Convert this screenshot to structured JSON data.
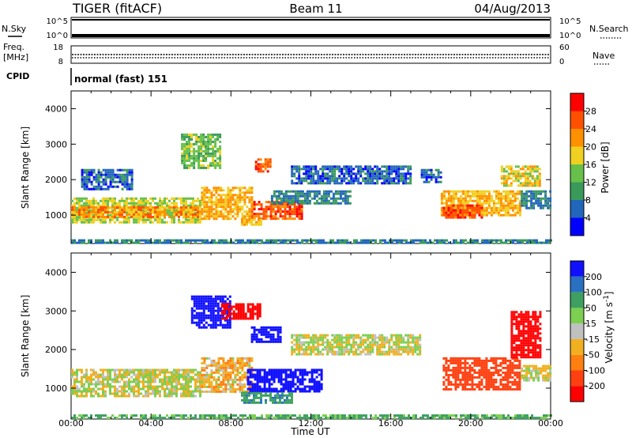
{
  "header": {
    "title": "TIGER (fitACF)",
    "beam": "Beam 11",
    "date": "04/Aug/2013"
  },
  "control_panels": {
    "nsky_label": "N.Sky",
    "nsky_ticks": [
      "10^5",
      "10^0"
    ],
    "nsearch_label": "N.Search",
    "nsearch_ticks": [
      "10^5",
      "10^0"
    ],
    "freq_label": "Freq.",
    "freq_unit": "[MHz]",
    "freq_ticks": [
      "18",
      "8"
    ],
    "nave_label": "Nave",
    "nave_ticks": [
      "60",
      "0"
    ],
    "cpid_label": "CPID",
    "cpid_value": "normal (fast) 151"
  },
  "x_axis": {
    "label": "Time UT",
    "ticks": [
      "00:00",
      "04:00",
      "08:00",
      "12:00",
      "16:00",
      "20:00",
      "00:00"
    ],
    "range_hours": [
      0,
      24
    ]
  },
  "colors": {
    "power_scale": [
      "#0000ff",
      "#2266bb",
      "#3a9a5a",
      "#66c04a",
      "#f0d020",
      "#ff9000",
      "#ff5000",
      "#ff0000"
    ],
    "velocity_scale": [
      "#1010ff",
      "#2a70c0",
      "#3da060",
      "#7ccf50",
      "#c0c0c0",
      "#f0b020",
      "#ff8010",
      "#ff4010",
      "#ff0000"
    ],
    "ground_scatter": "#b0b0b0"
  },
  "chart_data": [
    {
      "type": "heatmap",
      "panel": "power",
      "ylabel": "Slant Range [km]",
      "ylim": [
        200,
        4500
      ],
      "y_ticks": [
        "1000",
        "2000",
        "3000",
        "4000"
      ],
      "colorbar_label": "Power [dB]",
      "colorbar_ticks": [
        "28",
        "24",
        "20",
        "16",
        "12",
        "8",
        "4"
      ],
      "colorbar_range": [
        0,
        32
      ],
      "regions": [
        {
          "t0": 0.0,
          "t1": 6.5,
          "r0": 800,
          "r1": 1500,
          "level": 16
        },
        {
          "t0": 0.0,
          "t1": 6.5,
          "r0": 950,
          "r1": 1250,
          "level": 22
        },
        {
          "t0": 6.5,
          "t1": 9.0,
          "r0": 900,
          "r1": 1800,
          "level": 20
        },
        {
          "t0": 9.0,
          "t1": 11.5,
          "r0": 900,
          "r1": 1400,
          "level": 26
        },
        {
          "t0": 9.2,
          "t1": 10.0,
          "r0": 2200,
          "r1": 2600,
          "level": 26
        },
        {
          "t0": 8.5,
          "t1": 9.5,
          "r0": 700,
          "r1": 900,
          "level": 20
        },
        {
          "t0": 5.5,
          "t1": 7.5,
          "r0": 2300,
          "r1": 3300,
          "level": 14
        },
        {
          "t0": 0.5,
          "t1": 3.0,
          "r0": 1700,
          "r1": 2300,
          "level": 6
        },
        {
          "t0": 10.0,
          "t1": 14.0,
          "r0": 1300,
          "r1": 1700,
          "level": 8
        },
        {
          "t0": 11.0,
          "t1": 17.0,
          "r0": 1900,
          "r1": 2400,
          "level": 6
        },
        {
          "t0": 17.5,
          "t1": 18.5,
          "r0": 1900,
          "r1": 2300,
          "level": 6
        },
        {
          "t0": 18.5,
          "t1": 22.5,
          "r0": 1000,
          "r1": 1700,
          "level": 20
        },
        {
          "t0": 18.6,
          "t1": 20.5,
          "r0": 900,
          "r1": 1300,
          "level": 26
        },
        {
          "t0": 22.5,
          "t1": 24.0,
          "r0": 1200,
          "r1": 1700,
          "level": 8
        },
        {
          "t0": 21.5,
          "t1": 23.5,
          "r0": 1800,
          "r1": 2400,
          "level": 18
        },
        {
          "t0": 0.0,
          "t1": 24.0,
          "r0": 200,
          "r1": 320,
          "level": 8
        }
      ]
    },
    {
      "type": "heatmap",
      "panel": "velocity",
      "ylabel": "Slant Range [km]",
      "ylim": [
        200,
        4500
      ],
      "y_ticks": [
        "1000",
        "2000",
        "3000",
        "4000"
      ],
      "colorbar_label": "Velocity [m s^-1]",
      "colorbar_ticks": [
        "200",
        "100",
        "50",
        "15",
        "-15",
        "-50",
        "-100",
        "-200"
      ],
      "colorbar_range": [
        -250,
        250
      ],
      "regions": [
        {
          "t0": 0.0,
          "t1": 6.5,
          "r0": 800,
          "r1": 1500,
          "level": 0
        },
        {
          "t0": 6.5,
          "t1": 9.0,
          "r0": 900,
          "r1": 1800,
          "level": -20
        },
        {
          "t0": 8.8,
          "t1": 12.5,
          "r0": 900,
          "r1": 1500,
          "level": 220
        },
        {
          "t0": 8.5,
          "t1": 11.0,
          "r0": 600,
          "r1": 900,
          "level": 60
        },
        {
          "t0": 6.0,
          "t1": 8.0,
          "r0": 2600,
          "r1": 3400,
          "level": 180
        },
        {
          "t0": 9.0,
          "t1": 10.5,
          "r0": 2200,
          "r1": 2600,
          "level": 210
        },
        {
          "t0": 7.5,
          "t1": 9.5,
          "r0": 2800,
          "r1": 3200,
          "level": -200
        },
        {
          "t0": 11.0,
          "t1": 17.5,
          "r0": 1900,
          "r1": 2400,
          "level": 0
        },
        {
          "t0": 18.6,
          "t1": 22.5,
          "r0": 950,
          "r1": 1800,
          "level": -110
        },
        {
          "t0": 22.0,
          "t1": 23.5,
          "r0": 1800,
          "r1": 3000,
          "level": -200
        },
        {
          "t0": 22.5,
          "t1": 24.0,
          "r0": 1200,
          "r1": 1600,
          "level": 0
        },
        {
          "t0": 0.0,
          "t1": 24.0,
          "r0": 200,
          "r1": 320,
          "level": 40
        }
      ]
    }
  ]
}
